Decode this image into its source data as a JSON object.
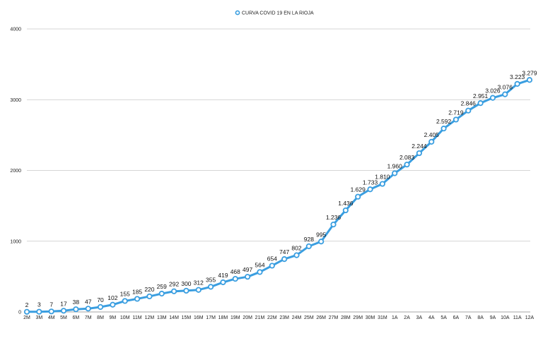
{
  "chart_data": {
    "type": "line",
    "legend": {
      "position": "top-center",
      "entries": [
        "CURVA COVID 19 EN LA RIOJA"
      ]
    },
    "series": [
      {
        "name": "CURVA COVID 19 EN LA RIOJA",
        "color": "#3a9ee0",
        "values": [
          2,
          3,
          7,
          17,
          38,
          47,
          70,
          102,
          155,
          185,
          220,
          259,
          292,
          300,
          312,
          355,
          419,
          468,
          497,
          564,
          654,
          747,
          802,
          928,
          995,
          1236,
          1436,
          1629,
          1733,
          1810,
          1960,
          2083,
          2244,
          2405,
          2592,
          2719,
          2846,
          2951,
          3026,
          3076,
          3223,
          3279
        ],
        "labels": [
          "2",
          "3",
          "7",
          "17",
          "38",
          "47",
          "70",
          "102",
          "155",
          "185",
          "220",
          "259",
          "292",
          "300",
          "312",
          "355",
          "419",
          "468",
          "497",
          "564",
          "654",
          "747",
          "802",
          "928",
          "995",
          "1.236",
          "1.436",
          "1.629",
          "1.733",
          "1.810",
          "1.960",
          "2.083",
          "2.244",
          "2.405",
          "2.592",
          "2.719",
          "2.846",
          "2.951",
          "3.026",
          "3.076",
          "3.223",
          "3.279"
        ]
      }
    ],
    "categories": [
      "2M",
      "3M",
      "4M",
      "5M",
      "6M",
      "7M",
      "8M",
      "9M",
      "10M",
      "11M",
      "12M",
      "13M",
      "14M",
      "15M",
      "16M",
      "17M",
      "18M",
      "19M",
      "20M",
      "21M",
      "22M",
      "23M",
      "24M",
      "25M",
      "26M",
      "27M",
      "28M",
      "29M",
      "30M",
      "31M",
      "1A",
      "2A",
      "3A",
      "4A",
      "5A",
      "6A",
      "7A",
      "8A",
      "9A",
      "10A",
      "11A",
      "12A"
    ],
    "y_ticks": [
      "0",
      "1000",
      "2000",
      "3000",
      "4000"
    ],
    "ylim": [
      0,
      4000
    ],
    "grid": true,
    "gridline_color": "#c8c8c8"
  }
}
